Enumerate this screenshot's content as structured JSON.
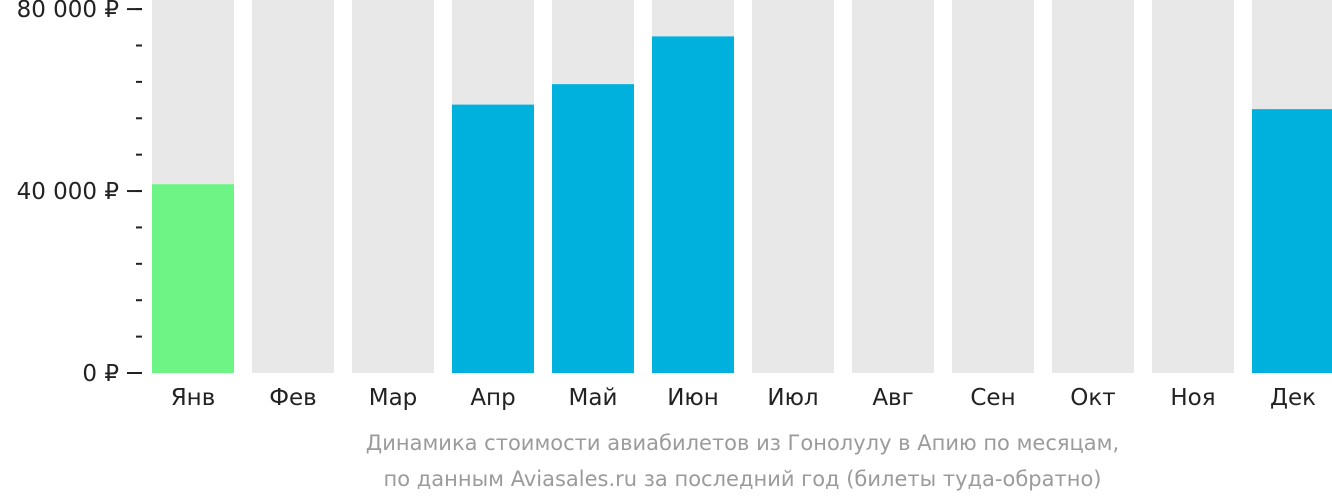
{
  "chart_data": {
    "type": "bar",
    "categories": [
      "Янв",
      "Фев",
      "Мар",
      "Апр",
      "Май",
      "Июн",
      "Июл",
      "Авг",
      "Сен",
      "Окт",
      "Ноя",
      "Дек"
    ],
    "values": [
      41500,
      null,
      null,
      59000,
      63500,
      74000,
      null,
      null,
      null,
      null,
      null,
      58000
    ],
    "ylim": [
      0,
      82000
    ],
    "yticks": [
      {
        "value": 0,
        "label": "0 ₽"
      },
      {
        "value": 40000,
        "label": "40 000 ₽"
      },
      {
        "value": 80000,
        "label": "80 000 ₽"
      }
    ],
    "minor_tick_step": 8000,
    "colors": {
      "lowest": "#6cf585",
      "bar": "#00b0dd",
      "empty": "#e8e8e8",
      "axis_text": "#222222",
      "tick": "#222222"
    },
    "grid": false,
    "legend": "none"
  },
  "caption": {
    "line1": "Динамика стоимости авиабилетов из Гонолулу в Апию по месяцам,",
    "line2": "по данным Aviasales.ru за последний год (билеты туда-обратно)"
  }
}
